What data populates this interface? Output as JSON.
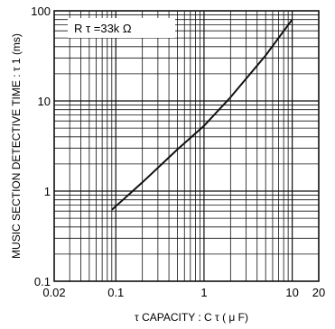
{
  "chart_data": {
    "type": "line",
    "title": "",
    "annotation": "R τ =33k Ω",
    "xlabel": "τ CAPACITY : C τ  ( μ F)",
    "ylabel": "MUSIC SECTION DETECTIVE TIME : τ 1 (ms)",
    "xscale": "log",
    "yscale": "log",
    "xlim": [
      0.02,
      20
    ],
    "ylim": [
      0.1,
      100
    ],
    "grid": true,
    "x_tick_labels": [
      {
        "value": 0.02,
        "label": "0.02"
      },
      {
        "value": 0.1,
        "label": "0.1"
      },
      {
        "value": 1,
        "label": "1"
      },
      {
        "value": 10,
        "label": "10"
      },
      {
        "value": 20,
        "label": "20"
      }
    ],
    "y_tick_labels": [
      {
        "value": 0.1,
        "label": "0.1"
      },
      {
        "value": 1,
        "label": "1"
      },
      {
        "value": 10,
        "label": "10"
      },
      {
        "value": 100,
        "label": "100"
      }
    ],
    "series": [
      {
        "x": [
          0.09,
          0.2,
          0.5,
          1.0,
          2.0,
          5.0,
          10.0
        ],
        "y": [
          0.62,
          1.25,
          2.9,
          5.3,
          11.0,
          32.0,
          80.0
        ]
      }
    ]
  }
}
